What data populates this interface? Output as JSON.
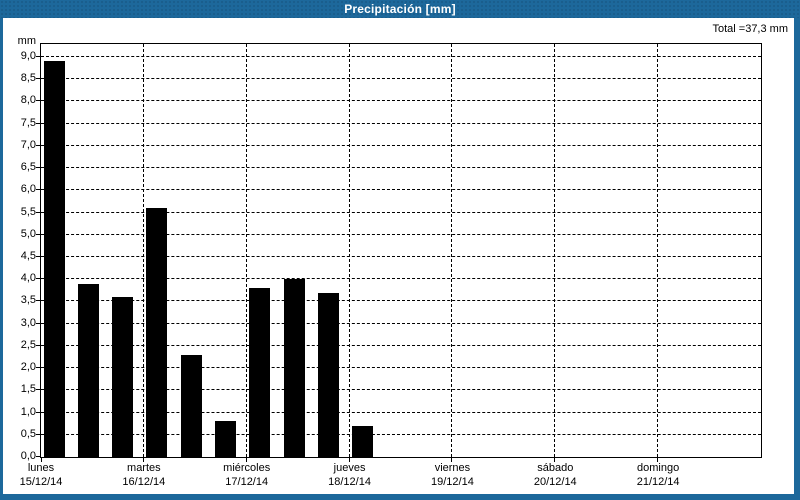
{
  "window": {
    "title": "Precipitación [mm]"
  },
  "colors": {
    "frame_blue": "#1d689b",
    "bar": "#000000",
    "grid": "#000000",
    "title_text": "#ffffff"
  },
  "chart_data": {
    "type": "bar",
    "title": "Precipitación [mm]",
    "total_label": "Total =37,3 mm",
    "total_mm": 37.3,
    "unit": "mm",
    "ylabel": "mm",
    "xlabel": "",
    "ylim": [
      0,
      9.0
    ],
    "ytick_step": 0.5,
    "ytick_labels": [
      "9,0",
      "8,5",
      "8,0",
      "7,5",
      "7,0",
      "6,5",
      "6,0",
      "5,5",
      "5,0",
      "4,5",
      "4,0",
      "3,5",
      "3,0",
      "2,5",
      "2,0",
      "1,5",
      "1,0",
      "0,5",
      "0,0"
    ],
    "grid": "dashed",
    "legend": "none",
    "bars_per_day": 3,
    "days": [
      {
        "name": "lunes",
        "date": "15/12/14",
        "values": [
          8.9,
          3.9,
          3.6
        ]
      },
      {
        "name": "martes",
        "date": "16/12/14",
        "values": [
          5.6,
          2.3,
          0.8
        ]
      },
      {
        "name": "miércoles",
        "date": "17/12/14",
        "values": [
          3.8,
          4.0,
          3.7
        ]
      },
      {
        "name": "jueves",
        "date": "18/12/14",
        "values": [
          0.7,
          0,
          0
        ]
      },
      {
        "name": "viernes",
        "date": "19/12/14",
        "values": [
          0,
          0,
          0
        ]
      },
      {
        "name": "sábado",
        "date": "20/12/14",
        "values": [
          0,
          0,
          0
        ]
      },
      {
        "name": "domingo",
        "date": "21/12/14",
        "values": [
          0,
          0,
          0
        ]
      }
    ]
  }
}
